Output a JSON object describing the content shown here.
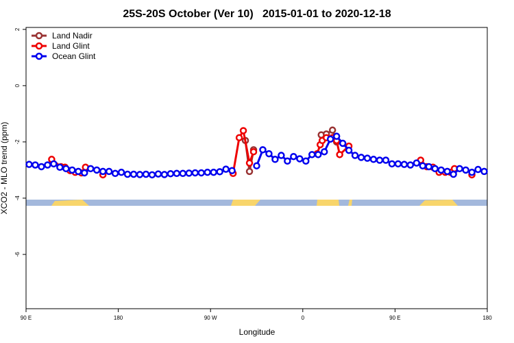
{
  "chart_data": {
    "type": "line",
    "title": "25S-20S October (Ver 10)   2015-01-01 to 2020-12-18",
    "x_label": "Longitude",
    "y_label": "XCO2 - MLO trend (ppm)",
    "xlim": [
      90,
      540
    ],
    "ylim": [
      -7.93,
      2.07
    ],
    "xticks": [
      {
        "value": 90,
        "label": "90 E"
      },
      {
        "value": 180,
        "label": "180"
      },
      {
        "value": 270,
        "label": "90 W"
      },
      {
        "value": 360,
        "label": "0"
      },
      {
        "value": 450,
        "label": "90 E"
      },
      {
        "value": 540,
        "label": "180"
      }
    ],
    "yticks": [
      -6,
      -4,
      -2,
      0,
      2
    ],
    "legend": "top-left",
    "series": [
      {
        "name": "Land Nadir",
        "color": "#993333",
        "x": [
          304,
          308,
          312,
          345,
          378,
          383,
          389,
          393
        ],
        "values": [
          -1.95,
          -3.05,
          -2.28,
          null,
          -1.75,
          -1.72,
          -1.58,
          -2.0
        ]
      },
      {
        "name": "Land Glint",
        "color": "#ee0000",
        "x": [
          115,
          124,
          128,
          133,
          138,
          144,
          148,
          156,
          165,
          230,
          292,
          298,
          302,
          308,
          312,
          340,
          374,
          377,
          379,
          383,
          389,
          393,
          396,
          405,
          440,
          475,
          481,
          487,
          493,
          499,
          504,
          508,
          515,
          525
        ],
        "values": [
          -2.62,
          -2.88,
          -2.9,
          -3.02,
          -3.08,
          -3.1,
          -2.9,
          null,
          -3.17,
          null,
          -3.12,
          -1.85,
          -1.6,
          -2.75,
          -2.35,
          null,
          -2.42,
          -2.1,
          -1.95,
          -1.85,
          -1.85,
          -1.95,
          -2.45,
          -2.15,
          null,
          -2.65,
          -2.88,
          -2.9,
          -3.08,
          -3.08,
          -3.08,
          -2.95,
          null,
          -3.17
        ]
      },
      {
        "name": "Ocean Glint",
        "color": "#0000ee",
        "x": [
          93,
          99,
          105,
          111,
          117,
          123,
          129,
          135,
          141,
          147,
          153,
          159,
          165,
          171,
          177,
          183,
          189,
          195,
          201,
          207,
          213,
          219,
          225,
          231,
          237,
          243,
          249,
          255,
          261,
          267,
          273,
          279,
          285,
          291,
          303,
          315,
          321,
          327,
          333,
          339,
          345,
          351,
          357,
          363,
          369,
          375,
          381,
          387,
          393,
          399,
          405,
          411,
          417,
          423,
          429,
          435,
          441,
          447,
          453,
          459,
          465,
          471,
          477,
          483,
          489,
          495,
          501,
          507,
          513,
          519,
          525,
          531,
          537
        ],
        "values": [
          -2.8,
          -2.82,
          -2.88,
          -2.82,
          -2.78,
          -2.9,
          -2.95,
          -3.0,
          -3.05,
          -3.1,
          -2.95,
          -3.0,
          -3.05,
          -3.05,
          -3.12,
          -3.08,
          -3.15,
          -3.15,
          -3.16,
          -3.15,
          -3.17,
          -3.14,
          -3.16,
          -3.13,
          -3.12,
          -3.12,
          -3.11,
          -3.1,
          -3.1,
          -3.08,
          -3.08,
          -3.06,
          -2.97,
          -3.02,
          null,
          -2.85,
          -2.28,
          -2.42,
          -2.62,
          -2.48,
          -2.68,
          -2.52,
          -2.6,
          -2.68,
          -2.45,
          -2.45,
          -2.35,
          -1.9,
          -1.8,
          -2.05,
          -2.3,
          -2.48,
          -2.55,
          -2.58,
          -2.62,
          -2.65,
          -2.65,
          -2.78,
          -2.78,
          -2.8,
          -2.82,
          -2.75,
          -2.85,
          -2.88,
          -2.95,
          -3.0,
          -3.05,
          -3.15,
          -2.95,
          -3.0,
          -3.08,
          -2.98,
          -3.05
        ]
      }
    ]
  }
}
